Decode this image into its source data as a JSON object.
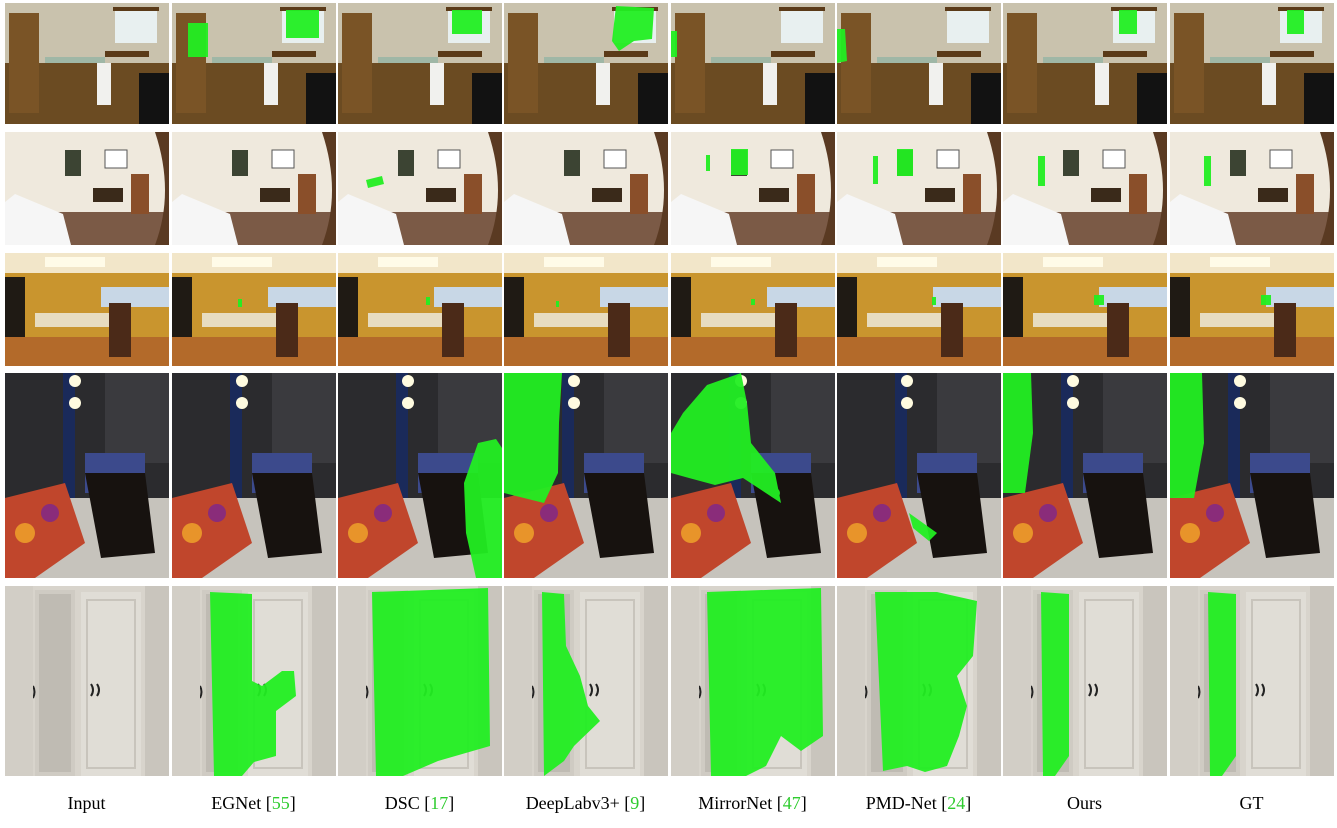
{
  "figure": {
    "columns": [
      {
        "key": "input",
        "name": "Input",
        "cite": "",
        "close": ""
      },
      {
        "key": "egnet",
        "name": "EGNet [",
        "cite": "55",
        "close": "]"
      },
      {
        "key": "dsc",
        "name": "DSC [",
        "cite": "17",
        "close": "]"
      },
      {
        "key": "deeplab",
        "name": "DeepLabv3+ [",
        "cite": "9",
        "close": "]"
      },
      {
        "key": "mirrornet",
        "name": "MirrorNet [",
        "cite": "47",
        "close": "]"
      },
      {
        "key": "pmdnet",
        "name": "PMD-Net [",
        "cite": "24",
        "close": "]"
      },
      {
        "key": "ours",
        "name": "Ours",
        "cite": "",
        "close": ""
      },
      {
        "key": "gt",
        "name": "GT",
        "cite": "",
        "close": ""
      }
    ],
    "rows": [
      {
        "scene": "bathroom"
      },
      {
        "scene": "bedroom"
      },
      {
        "scene": "kitchen"
      },
      {
        "scene": "closet-mirror"
      },
      {
        "scene": "wardrobe-mirror"
      }
    ],
    "mask_color": "#22ee22",
    "link_color": "#2ecc2e"
  }
}
